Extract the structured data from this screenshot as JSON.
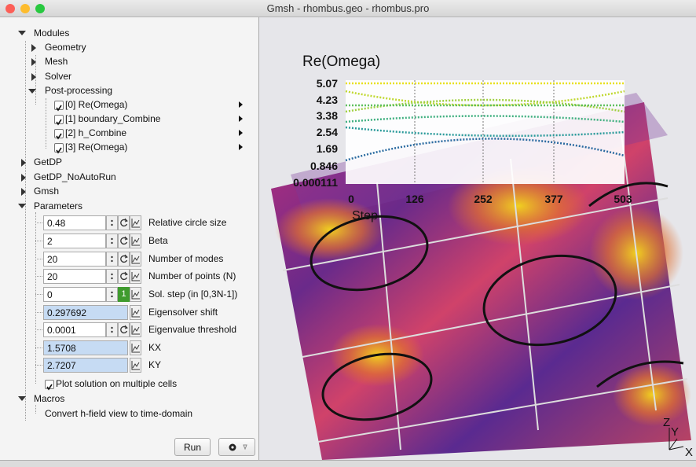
{
  "window": {
    "title": "Gmsh - rhombus.geo - rhombus.pro"
  },
  "tree": {
    "modules": "Modules",
    "module_items": [
      "Geometry",
      "Mesh",
      "Solver"
    ],
    "post_processing": "Post-processing",
    "views": [
      "[0] Re(Omega)",
      "[1] boundary_Combine",
      "[2] h_Combine",
      "[3] Re(Omega)"
    ],
    "groups": [
      "GetDP",
      "GetDP_NoAutoRun",
      "Gmsh"
    ],
    "parameters": "Parameters",
    "parameter_rows": [
      {
        "value": "0.48",
        "label": "Relative circle size"
      },
      {
        "value": "2",
        "label": "Beta"
      },
      {
        "value": "20",
        "label": "Number of modes"
      },
      {
        "value": "20",
        "label": "Number of points (N)"
      },
      {
        "value": "0",
        "label": "Sol. step (in [0,3N-1])"
      },
      {
        "value": "0.297692",
        "label": "Eigensolver shift"
      },
      {
        "value": "0.0001",
        "label": "Eigenvalue threshold"
      },
      {
        "value": "1.5708",
        "label": "KX"
      },
      {
        "value": "2.7207",
        "label": "KY"
      }
    ],
    "sol_step_button": "1",
    "checkbox_option": "Plot solution on multiple cells",
    "macros": "Macros",
    "macro_items": [
      "Convert h-field view to time-domain"
    ]
  },
  "buttons": {
    "run": "Run"
  },
  "graphics": {
    "plot": {
      "title": "Re(Omega)",
      "yticks": [
        "5.07",
        "4.23",
        "3.38",
        "2.54",
        "1.69",
        "0.846",
        "0.000111"
      ],
      "xticks": [
        "0",
        "126",
        "252",
        "377",
        "503"
      ],
      "xlabel": "Step"
    },
    "axes": {
      "z": "Z",
      "y": "Y",
      "x": "X"
    }
  }
}
